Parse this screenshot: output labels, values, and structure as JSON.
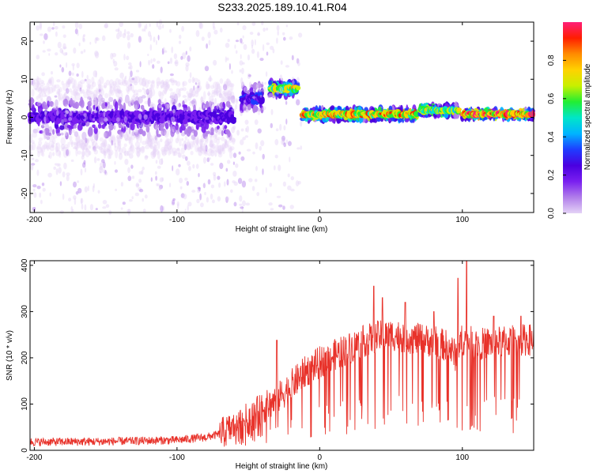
{
  "title": "S233.2025.189.10.41.R04",
  "colors": {
    "snr_line": "#e8322a",
    "axis": "#000000",
    "colormap": [
      "#ffffff",
      "#e4d2f6",
      "#b17eea",
      "#7a1ff0",
      "#4a00e0",
      "#1f3cff",
      "#00b4ff",
      "#00e6c8",
      "#22ee33",
      "#c8f000",
      "#ffd200",
      "#ff8c00",
      "#ff1e00",
      "#ff1e78"
    ]
  },
  "chart_data": [
    {
      "type": "heatmap",
      "name": "spectrogram",
      "xlabel": "Height of straight line (km)",
      "ylabel": "Frequency (Hz)",
      "xlim": [
        -203,
        150
      ],
      "ylim": [
        -25,
        25
      ],
      "xticks": [
        -200,
        -100,
        0,
        100
      ],
      "yticks": [
        -20,
        -10,
        0,
        10,
        20
      ],
      "colorbar": {
        "label": "Normalized spectral amplitude",
        "range": [
          0,
          1
        ],
        "ticks": [
          "0.0",
          "0.2",
          "0.4",
          "0.6",
          "0.8"
        ]
      },
      "ridge": [
        {
          "x_range": [
            -203,
            -60
          ],
          "freq": 0,
          "spread": 4,
          "peak": 0.28
        },
        {
          "x_range": [
            -55,
            -40
          ],
          "freq": 5,
          "spread": 3,
          "peak": 0.32
        },
        {
          "x_range": [
            -35,
            -15
          ],
          "freq": 7.5,
          "spread": 1.5,
          "peak": 0.75
        },
        {
          "x_range": [
            -12,
            68
          ],
          "freq": 0.8,
          "spread": 1.2,
          "peak": 0.85
        },
        {
          "x_range": [
            70,
            98
          ],
          "freq": 1.8,
          "spread": 1.2,
          "peak": 0.7
        },
        {
          "x_range": [
            100,
            150
          ],
          "freq": 0.8,
          "spread": 0.8,
          "peak": 0.95
        }
      ]
    },
    {
      "type": "line",
      "name": "snr",
      "xlabel": "Height of straight line (km)",
      "ylabel": "SNR (10 * v/v)",
      "xlim": [
        -203,
        150
      ],
      "ylim": [
        0,
        410
      ],
      "xticks": [
        -200,
        -100,
        0,
        100
      ],
      "yticks": [
        0,
        100,
        200,
        300,
        400
      ],
      "trend": {
        "x": [
          -203,
          -150,
          -100,
          -80,
          -70,
          -60,
          -50,
          -40,
          -30,
          -20,
          -10,
          0,
          10,
          20,
          30,
          40,
          50,
          60,
          70,
          80,
          90,
          95,
          100,
          110,
          120,
          130,
          140,
          150
        ],
        "y": [
          18,
          19,
          22,
          28,
          35,
          50,
          70,
          90,
          110,
          140,
          170,
          190,
          205,
          220,
          235,
          245,
          250,
          245,
          240,
          235,
          225,
          205,
          240,
          230,
          232,
          235,
          238,
          240
        ]
      },
      "spikes": [
        {
          "x": -30,
          "y": 238
        },
        {
          "x": 38,
          "y": 355
        },
        {
          "x": 97,
          "y": 372
        },
        {
          "x": 103,
          "y": 410
        },
        {
          "x": 44,
          "y": 330
        },
        {
          "x": 60,
          "y": 320
        },
        {
          "x": 122,
          "y": 290
        },
        {
          "x": 141,
          "y": 290
        },
        {
          "x": 80,
          "y": 300
        }
      ]
    }
  ]
}
